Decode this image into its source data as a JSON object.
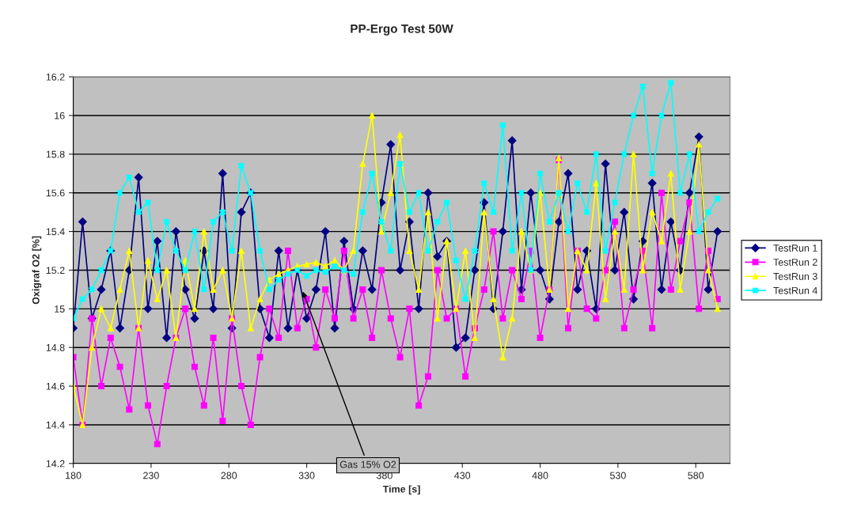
{
  "chart_data": {
    "type": "line",
    "title": "PP-Ergo Test 50W",
    "xlabel": "Time [s]",
    "ylabel": "Oxigraf O2 [%]",
    "x": [
      180,
      186,
      192,
      198,
      204,
      210,
      216,
      222,
      228,
      234,
      240,
      246,
      252,
      258,
      264,
      270,
      276,
      282,
      288,
      294,
      300,
      306,
      312,
      318,
      324,
      330,
      336,
      342,
      348,
      354,
      360,
      366,
      372,
      378,
      384,
      390,
      396,
      402,
      408,
      414,
      420,
      426,
      432,
      438,
      444,
      450,
      456,
      462,
      468,
      474,
      480,
      486,
      492,
      498,
      504,
      510,
      516,
      522,
      528,
      534,
      540,
      546,
      552,
      558,
      564,
      570,
      576,
      582,
      588,
      594
    ],
    "series": [
      {
        "name": "TestRun 1",
        "color": "#000080",
        "marker": "diamond",
        "values": [
          14.9,
          15.45,
          14.95,
          15.1,
          15.3,
          14.9,
          15.2,
          15.68,
          15.0,
          15.35,
          14.85,
          15.4,
          15.1,
          14.95,
          15.3,
          15.0,
          15.7,
          14.9,
          15.5,
          15.6,
          15.0,
          14.85,
          15.3,
          14.9,
          15.2,
          14.95,
          15.1,
          15.4,
          14.9,
          15.35,
          15.0,
          15.3,
          15.1,
          15.55,
          15.85,
          15.2,
          15.45,
          15.0,
          15.6,
          15.27,
          15.35,
          14.8,
          14.85,
          15.2,
          15.55,
          15.0,
          15.4,
          15.87,
          15.1,
          15.6,
          15.2,
          15.05,
          15.45,
          15.7,
          15.1,
          15.3,
          15.0,
          15.75,
          15.2,
          15.5,
          15.05,
          15.35,
          15.65,
          15.1,
          15.45,
          15.2,
          15.6,
          15.89,
          15.1,
          15.4
        ]
      },
      {
        "name": "TestRun 2",
        "color": "#ff00ff",
        "marker": "square",
        "values": [
          14.75,
          14.4,
          14.95,
          14.6,
          14.85,
          14.7,
          14.48,
          14.9,
          14.5,
          14.3,
          14.6,
          14.85,
          15.0,
          14.7,
          14.5,
          14.85,
          14.42,
          14.95,
          14.6,
          14.4,
          14.75,
          15.0,
          14.85,
          15.3,
          14.9,
          15.05,
          14.8,
          15.1,
          14.95,
          15.3,
          14.95,
          15.1,
          14.85,
          15.2,
          14.95,
          14.75,
          15.0,
          14.5,
          14.65,
          15.2,
          14.95,
          15.0,
          14.65,
          14.9,
          15.1,
          15.4,
          14.95,
          15.2,
          15.05,
          15.3,
          14.85,
          15.1,
          15.77,
          14.9,
          15.3,
          15.0,
          14.95,
          15.2,
          15.45,
          14.9,
          15.1,
          15.3,
          14.9,
          15.6,
          15.1,
          15.35,
          15.55,
          15.0,
          15.3,
          15.05
        ]
      },
      {
        "name": "TestRun 3",
        "color": "#ffff00",
        "marker": "triangle",
        "values": [
          14.6,
          14.4,
          14.8,
          15.0,
          14.9,
          15.1,
          15.3,
          14.9,
          15.25,
          15.05,
          15.2,
          14.85,
          15.25,
          15.0,
          15.4,
          15.1,
          15.2,
          14.95,
          15.3,
          14.9,
          15.05,
          15.15,
          15.18,
          15.2,
          15.22,
          15.23,
          15.24,
          15.22,
          15.25,
          15.2,
          15.3,
          15.75,
          16.0,
          15.4,
          15.6,
          15.9,
          15.3,
          15.1,
          15.5,
          14.95,
          15.35,
          15.0,
          15.3,
          14.85,
          15.5,
          15.05,
          14.75,
          14.95,
          15.4,
          15.2,
          15.6,
          15.1,
          15.78,
          15.0,
          15.3,
          15.2,
          15.65,
          15.05,
          15.4,
          15.1,
          15.8,
          15.2,
          15.5,
          15.35,
          15.7,
          15.1,
          15.4,
          15.85,
          15.2,
          15.0
        ]
      },
      {
        "name": "TestRun 4",
        "color": "#00ffff",
        "marker": "cross",
        "values": [
          14.95,
          15.05,
          15.1,
          15.2,
          15.3,
          15.6,
          15.68,
          15.5,
          15.55,
          15.2,
          15.45,
          15.3,
          15.2,
          15.4,
          15.1,
          15.45,
          15.5,
          15.3,
          15.74,
          15.6,
          15.3,
          15.1,
          15.15,
          15.18,
          15.2,
          15.17,
          15.2,
          15.19,
          15.22,
          15.2,
          15.18,
          15.5,
          15.7,
          15.45,
          15.3,
          15.75,
          15.5,
          15.6,
          15.3,
          15.45,
          15.55,
          15.25,
          15.05,
          15.3,
          15.65,
          15.5,
          15.95,
          15.3,
          15.6,
          15.2,
          15.7,
          15.45,
          15.6,
          15.4,
          15.65,
          15.5,
          15.8,
          15.3,
          15.55,
          15.8,
          16.0,
          16.15,
          15.7,
          16.0,
          16.17,
          15.6,
          15.8,
          15.4,
          15.5,
          15.57
        ]
      }
    ],
    "xlim": [
      180,
      602
    ],
    "xticks": [
      180,
      230,
      280,
      330,
      380,
      430,
      480,
      530,
      580
    ],
    "ylim": [
      14.2,
      16.2
    ],
    "yticks": [
      14.2,
      14.4,
      14.6,
      14.8,
      15,
      15.2,
      15.4,
      15.6,
      15.8,
      16,
      16.2
    ],
    "grid": "y",
    "legend": "right",
    "line_style": "solid",
    "annotations": [
      {
        "text": "Gas 15% O2",
        "x": 327,
        "y": 15.1
      }
    ]
  }
}
